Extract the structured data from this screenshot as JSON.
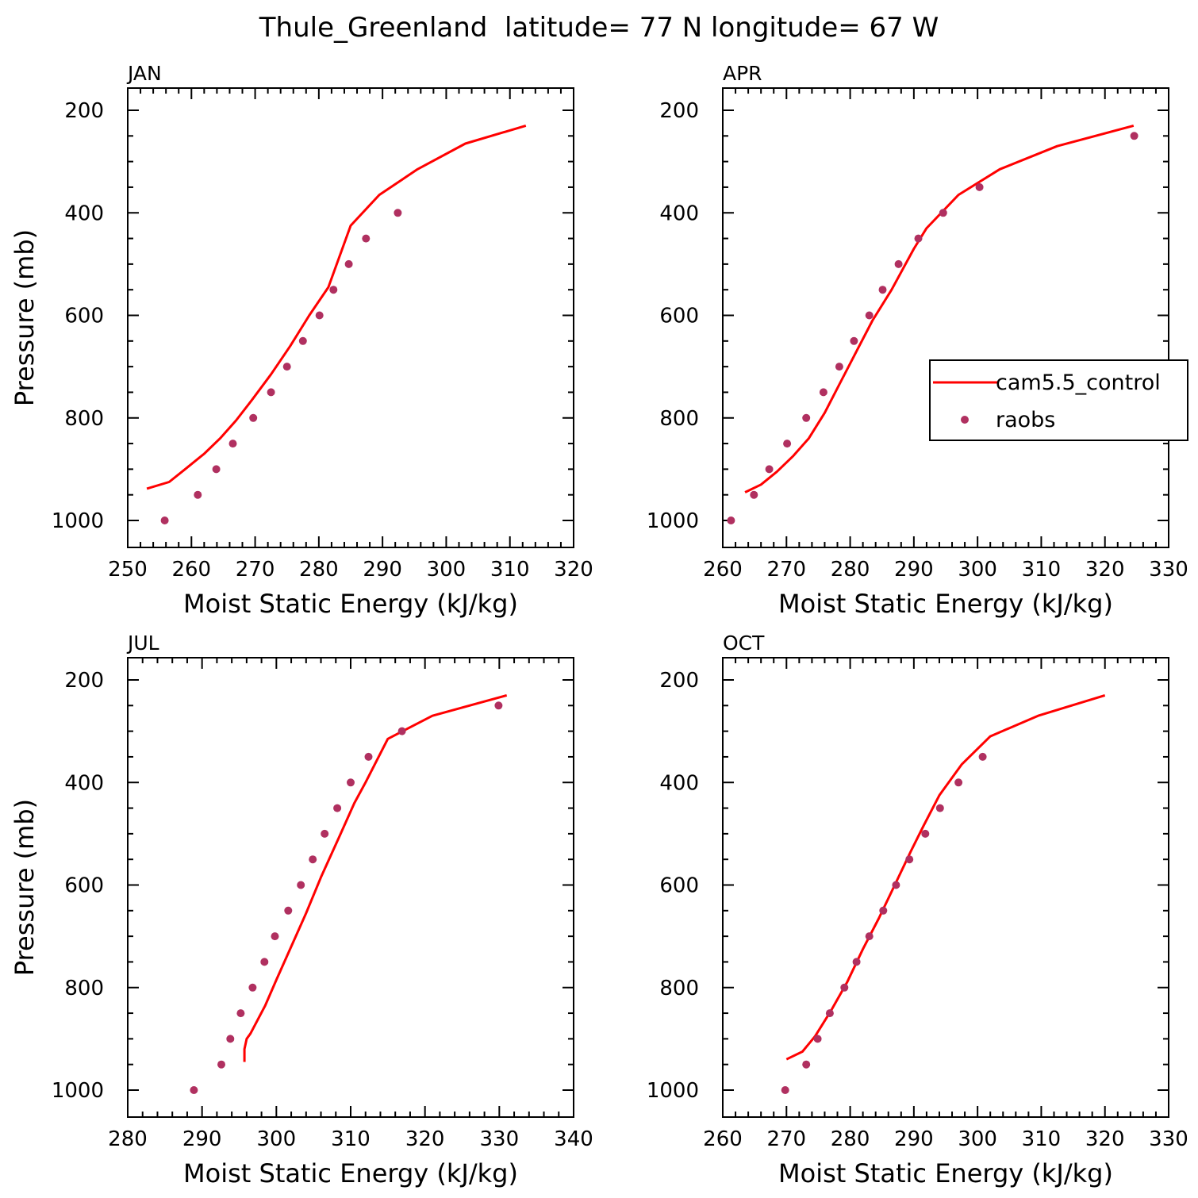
{
  "title": "Thule_Greenland  latitude= 77 N longitude= 67 W",
  "colors": {
    "model": "#ff0000",
    "obs": "#b03060",
    "axis": "#000000"
  },
  "legend": {
    "entries": [
      "cam5.5_control",
      "raobs"
    ],
    "placement": "inside APR panel, right"
  },
  "chart_data": [
    {
      "type": "line",
      "panel": "JAN",
      "xlabel": "Moist Static Energy (kJ/kg)",
      "ylabel": "Pressure (mb)",
      "xlim": [
        250,
        320
      ],
      "xticks": [
        250,
        260,
        270,
        280,
        290,
        300,
        310,
        320
      ],
      "ylim": [
        1000,
        200
      ],
      "yticks": [
        200,
        400,
        600,
        800,
        1000
      ],
      "series": [
        {
          "name": "cam5.5_control",
          "style": "line",
          "x": [
            253.0,
            256.5,
            259.0,
            262.0,
            264.5,
            267.0,
            269.5,
            272.5,
            275.5,
            278.5,
            281.5,
            285.0,
            289.5,
            295.5,
            303.0,
            312.5
          ],
          "y": [
            938,
            925,
            900,
            870,
            840,
            805,
            765,
            715,
            660,
            600,
            545,
            425,
            365,
            315,
            265,
            230
          ]
        },
        {
          "name": "raobs",
          "style": "markers",
          "x": [
            255.8,
            261.0,
            263.9,
            266.5,
            269.7,
            272.5,
            275.0,
            277.5,
            280.1,
            282.3,
            284.7,
            287.4,
            292.4
          ],
          "y": [
            1000,
            950,
            900,
            850,
            800,
            750,
            700,
            650,
            600,
            550,
            500,
            450,
            400
          ]
        }
      ]
    },
    {
      "type": "line",
      "panel": "APR",
      "xlabel": "Moist Static Energy (kJ/kg)",
      "ylabel": "",
      "xlim": [
        260,
        330
      ],
      "xticks": [
        260,
        270,
        280,
        290,
        300,
        310,
        320,
        330
      ],
      "ylim": [
        1000,
        200
      ],
      "yticks": [
        200,
        400,
        600,
        800,
        1000
      ],
      "series": [
        {
          "name": "cam5.5_control",
          "style": "line",
          "x": [
            263.5,
            266.0,
            268.5,
            271.0,
            273.5,
            276.0,
            278.5,
            281.0,
            283.5,
            286.5,
            290.0,
            292.0,
            297.0,
            303.5,
            312.5,
            324.5
          ],
          "y": [
            945,
            930,
            905,
            875,
            840,
            790,
            730,
            670,
            610,
            550,
            470,
            430,
            365,
            315,
            270,
            230
          ]
        },
        {
          "name": "raobs",
          "style": "markers",
          "x": [
            261.3,
            264.9,
            267.3,
            270.1,
            273.1,
            275.8,
            278.3,
            280.6,
            283.0,
            285.1,
            287.6,
            290.7,
            294.6,
            300.3,
            324.6
          ],
          "y": [
            1000,
            950,
            900,
            850,
            800,
            750,
            700,
            650,
            600,
            550,
            500,
            450,
            400,
            350,
            250
          ]
        }
      ]
    },
    {
      "type": "line",
      "panel": "JUL",
      "xlabel": "Moist Static Energy (kJ/kg)",
      "ylabel": "Pressure (mb)",
      "xlim": [
        280,
        340
      ],
      "xticks": [
        280,
        290,
        300,
        310,
        320,
        330,
        340
      ],
      "ylim": [
        1000,
        200
      ],
      "yticks": [
        200,
        400,
        600,
        800,
        1000
      ],
      "series": [
        {
          "name": "cam5.5_control",
          "style": "line",
          "x": [
            295.7,
            295.7,
            296.0,
            296.5,
            298.5,
            300.0,
            302.0,
            304.0,
            306.0,
            308.5,
            310.5,
            312.0,
            315.0,
            321.0,
            331.0
          ],
          "y": [
            945,
            920,
            900,
            890,
            835,
            785,
            720,
            655,
            585,
            505,
            440,
            400,
            315,
            270,
            230
          ]
        },
        {
          "name": "raobs",
          "style": "markers",
          "x": [
            288.9,
            292.6,
            293.8,
            295.2,
            296.8,
            298.4,
            299.8,
            301.6,
            303.3,
            304.9,
            306.5,
            308.2,
            310.0,
            312.4,
            316.9,
            329.9
          ],
          "y": [
            1000,
            950,
            900,
            850,
            800,
            750,
            700,
            650,
            600,
            550,
            500,
            450,
            400,
            350,
            300,
            250
          ]
        }
      ]
    },
    {
      "type": "line",
      "panel": "OCT",
      "xlabel": "Moist Static Energy (kJ/kg)",
      "ylabel": "",
      "xlim": [
        260,
        330
      ],
      "xticks": [
        260,
        270,
        280,
        290,
        300,
        310,
        320,
        330
      ],
      "ylim": [
        1000,
        200
      ],
      "yticks": [
        200,
        400,
        600,
        800,
        1000
      ],
      "series": [
        {
          "name": "cam5.5_control",
          "style": "line",
          "x": [
            270.0,
            272.5,
            274.5,
            277.0,
            279.5,
            282.0,
            284.5,
            287.0,
            289.5,
            291.5,
            294.0,
            297.5,
            302.0,
            309.5,
            320.0
          ],
          "y": [
            940,
            925,
            895,
            845,
            790,
            725,
            665,
            600,
            535,
            485,
            425,
            365,
            310,
            270,
            230
          ]
        },
        {
          "name": "raobs",
          "style": "markers",
          "x": [
            269.8,
            273.1,
            274.9,
            276.8,
            279.1,
            281.0,
            283.0,
            285.2,
            287.2,
            289.3,
            291.8,
            294.1,
            297.0,
            300.8
          ],
          "y": [
            1000,
            950,
            900,
            850,
            800,
            750,
            700,
            650,
            600,
            550,
            500,
            450,
            400,
            350
          ]
        }
      ]
    }
  ]
}
